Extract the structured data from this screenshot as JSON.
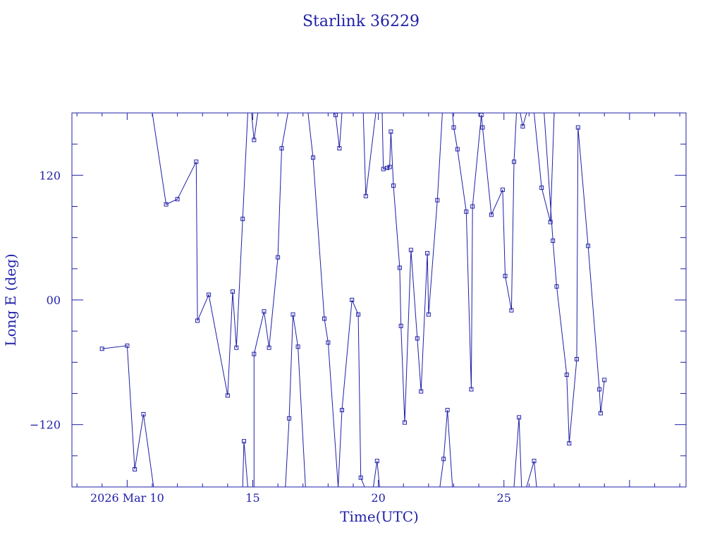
{
  "chart_data": {
    "type": "line",
    "title": "Starlink 36229",
    "xlabel": "Time(UTC)",
    "ylabel": "Long E (deg)",
    "x_ticks": [
      {
        "x": 10,
        "label": "2026 Mar 10"
      },
      {
        "x": 15,
        "label": "15"
      },
      {
        "x": 20,
        "label": "20"
      },
      {
        "x": 25,
        "label": "25"
      }
    ],
    "y_ticks": [
      {
        "y": 120,
        "label": "120"
      },
      {
        "y": 0,
        "label": "00"
      },
      {
        "y": -120,
        "label": "−120"
      }
    ],
    "xlim": [
      7.8,
      32.25
    ],
    "ylim": [
      -180,
      180
    ],
    "grid": false,
    "line_color": "#1f1fa8",
    "series": [
      {
        "points": [
          [
            9.0,
            -47
          ],
          [
            10.0,
            -44
          ],
          [
            10.3,
            -163
          ],
          [
            10.65,
            -110
          ],
          [
            11.05,
            -180
          ]
        ]
      },
      {
        "points": [
          [
            11.0,
            180
          ],
          [
            11.55,
            92
          ],
          [
            12.0,
            97
          ],
          [
            12.75,
            133
          ],
          [
            12.8,
            -20
          ],
          [
            13.25,
            5
          ],
          [
            14.0,
            -92
          ],
          [
            14.2,
            8
          ],
          [
            14.35,
            -46
          ],
          [
            14.6,
            78
          ],
          [
            14.8,
            180
          ]
        ]
      },
      {
        "points": [
          [
            14.8,
            -180
          ],
          [
            14.65,
            -136
          ],
          [
            14.6,
            -180
          ]
        ]
      },
      {
        "points": [
          [
            14.95,
            180
          ],
          [
            15.05,
            154
          ],
          [
            15.2,
            180
          ]
        ]
      },
      {
        "points": [
          [
            15.05,
            -180
          ],
          [
            15.05,
            -52
          ],
          [
            15.45,
            -11
          ],
          [
            15.65,
            -46
          ],
          [
            16.0,
            41
          ],
          [
            16.15,
            146
          ],
          [
            16.4,
            180
          ]
        ]
      },
      {
        "points": [
          [
            16.3,
            -180
          ],
          [
            16.45,
            -114
          ],
          [
            16.6,
            -14
          ],
          [
            16.8,
            -45
          ],
          [
            17.1,
            -180
          ]
        ]
      },
      {
        "points": [
          [
            17.2,
            180
          ],
          [
            17.4,
            137
          ],
          [
            17.85,
            -18
          ],
          [
            18.0,
            -41
          ],
          [
            18.4,
            -180
          ]
        ]
      },
      {
        "points": [
          [
            18.2,
            180
          ],
          [
            18.3,
            178
          ],
          [
            18.45,
            146
          ],
          [
            18.55,
            180
          ]
        ]
      },
      {
        "points": [
          [
            18.4,
            -180
          ],
          [
            18.55,
            -106
          ],
          [
            18.95,
            0
          ],
          [
            19.2,
            -14
          ],
          [
            19.3,
            -171
          ],
          [
            19.45,
            -180
          ]
        ]
      },
      {
        "points": [
          [
            19.4,
            180
          ],
          [
            19.5,
            100
          ],
          [
            19.9,
            180
          ]
        ]
      },
      {
        "points": [
          [
            19.8,
            -180
          ],
          [
            19.95,
            -155
          ],
          [
            20.05,
            -180
          ]
        ]
      },
      {
        "points": [
          [
            20.15,
            180
          ],
          [
            20.2,
            126
          ],
          [
            20.35,
            127
          ],
          [
            20.45,
            128
          ],
          [
            20.5,
            162
          ],
          [
            20.6,
            110
          ],
          [
            20.85,
            31
          ],
          [
            20.9,
            -25
          ],
          [
            21.05,
            -118
          ],
          [
            21.3,
            48
          ],
          [
            21.55,
            -37
          ],
          [
            21.7,
            -88
          ],
          [
            21.95,
            45
          ],
          [
            22.0,
            -14
          ],
          [
            22.35,
            96
          ],
          [
            22.55,
            180
          ]
        ]
      },
      {
        "points": [
          [
            22.45,
            -180
          ],
          [
            22.6,
            -153
          ],
          [
            22.75,
            -106
          ],
          [
            22.95,
            -180
          ]
        ]
      },
      {
        "points": [
          [
            22.95,
            180
          ],
          [
            23.0,
            166
          ],
          [
            23.15,
            145
          ],
          [
            23.5,
            85
          ],
          [
            23.7,
            -86
          ],
          [
            23.75,
            90
          ],
          [
            24.1,
            178
          ],
          [
            24.15,
            166
          ],
          [
            24.5,
            82
          ],
          [
            24.95,
            106
          ],
          [
            25.05,
            23
          ],
          [
            25.3,
            -10
          ],
          [
            25.4,
            133
          ],
          [
            25.5,
            180
          ]
        ]
      },
      {
        "points": [
          [
            25.4,
            -180
          ],
          [
            25.6,
            -113
          ],
          [
            25.7,
            -180
          ]
        ]
      },
      {
        "points": [
          [
            25.65,
            180
          ],
          [
            25.75,
            167
          ],
          [
            25.9,
            180
          ]
        ]
      },
      {
        "points": [
          [
            25.9,
            -180
          ],
          [
            26.2,
            -155
          ],
          [
            26.3,
            -180
          ]
        ]
      },
      {
        "points": [
          [
            26.2,
            180
          ],
          [
            26.5,
            108
          ],
          [
            26.85,
            75
          ],
          [
            27.0,
            180
          ]
        ]
      },
      {
        "points": [
          [
            26.6,
            180
          ],
          [
            26.95,
            57
          ],
          [
            27.1,
            13
          ],
          [
            27.5,
            -72
          ],
          [
            27.6,
            -138
          ],
          [
            27.9,
            -57
          ],
          [
            27.95,
            166
          ],
          [
            28.35,
            52
          ],
          [
            28.8,
            -86
          ],
          [
            28.85,
            -109
          ],
          [
            29.0,
            -77
          ]
        ]
      }
    ]
  }
}
